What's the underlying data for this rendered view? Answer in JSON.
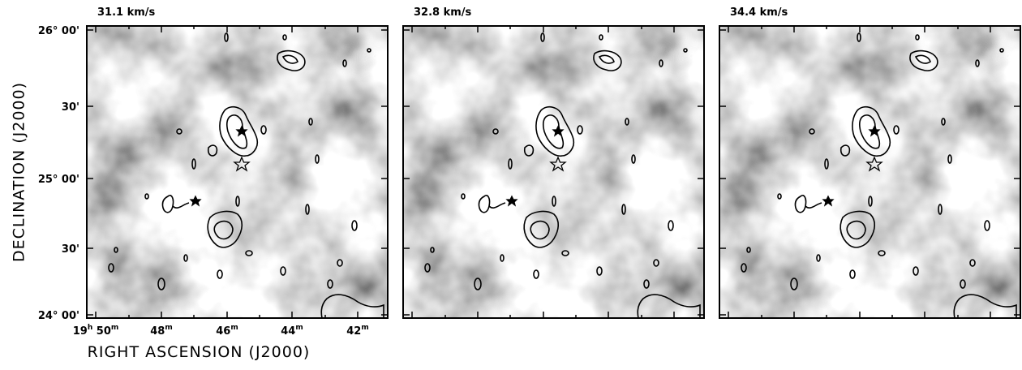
{
  "panels": [
    {
      "title": "31.1 km/s"
    },
    {
      "title": "32.8 km/s"
    },
    {
      "title": "34.4 km/s"
    }
  ],
  "y_axis": {
    "label": "DECLINATION (J2000)",
    "ticks": [
      "26° 00'",
      "30'",
      "25° 00'",
      "30'",
      "24° 00'"
    ]
  },
  "x_axis": {
    "label": "RIGHT ASCENSION (J2000)",
    "ticks": [
      [
        "19",
        "h",
        " 50",
        "m"
      ],
      [
        "48",
        "m"
      ],
      [
        "46",
        "m"
      ],
      [
        "44",
        "m"
      ],
      [
        "42",
        "m"
      ]
    ]
  }
}
